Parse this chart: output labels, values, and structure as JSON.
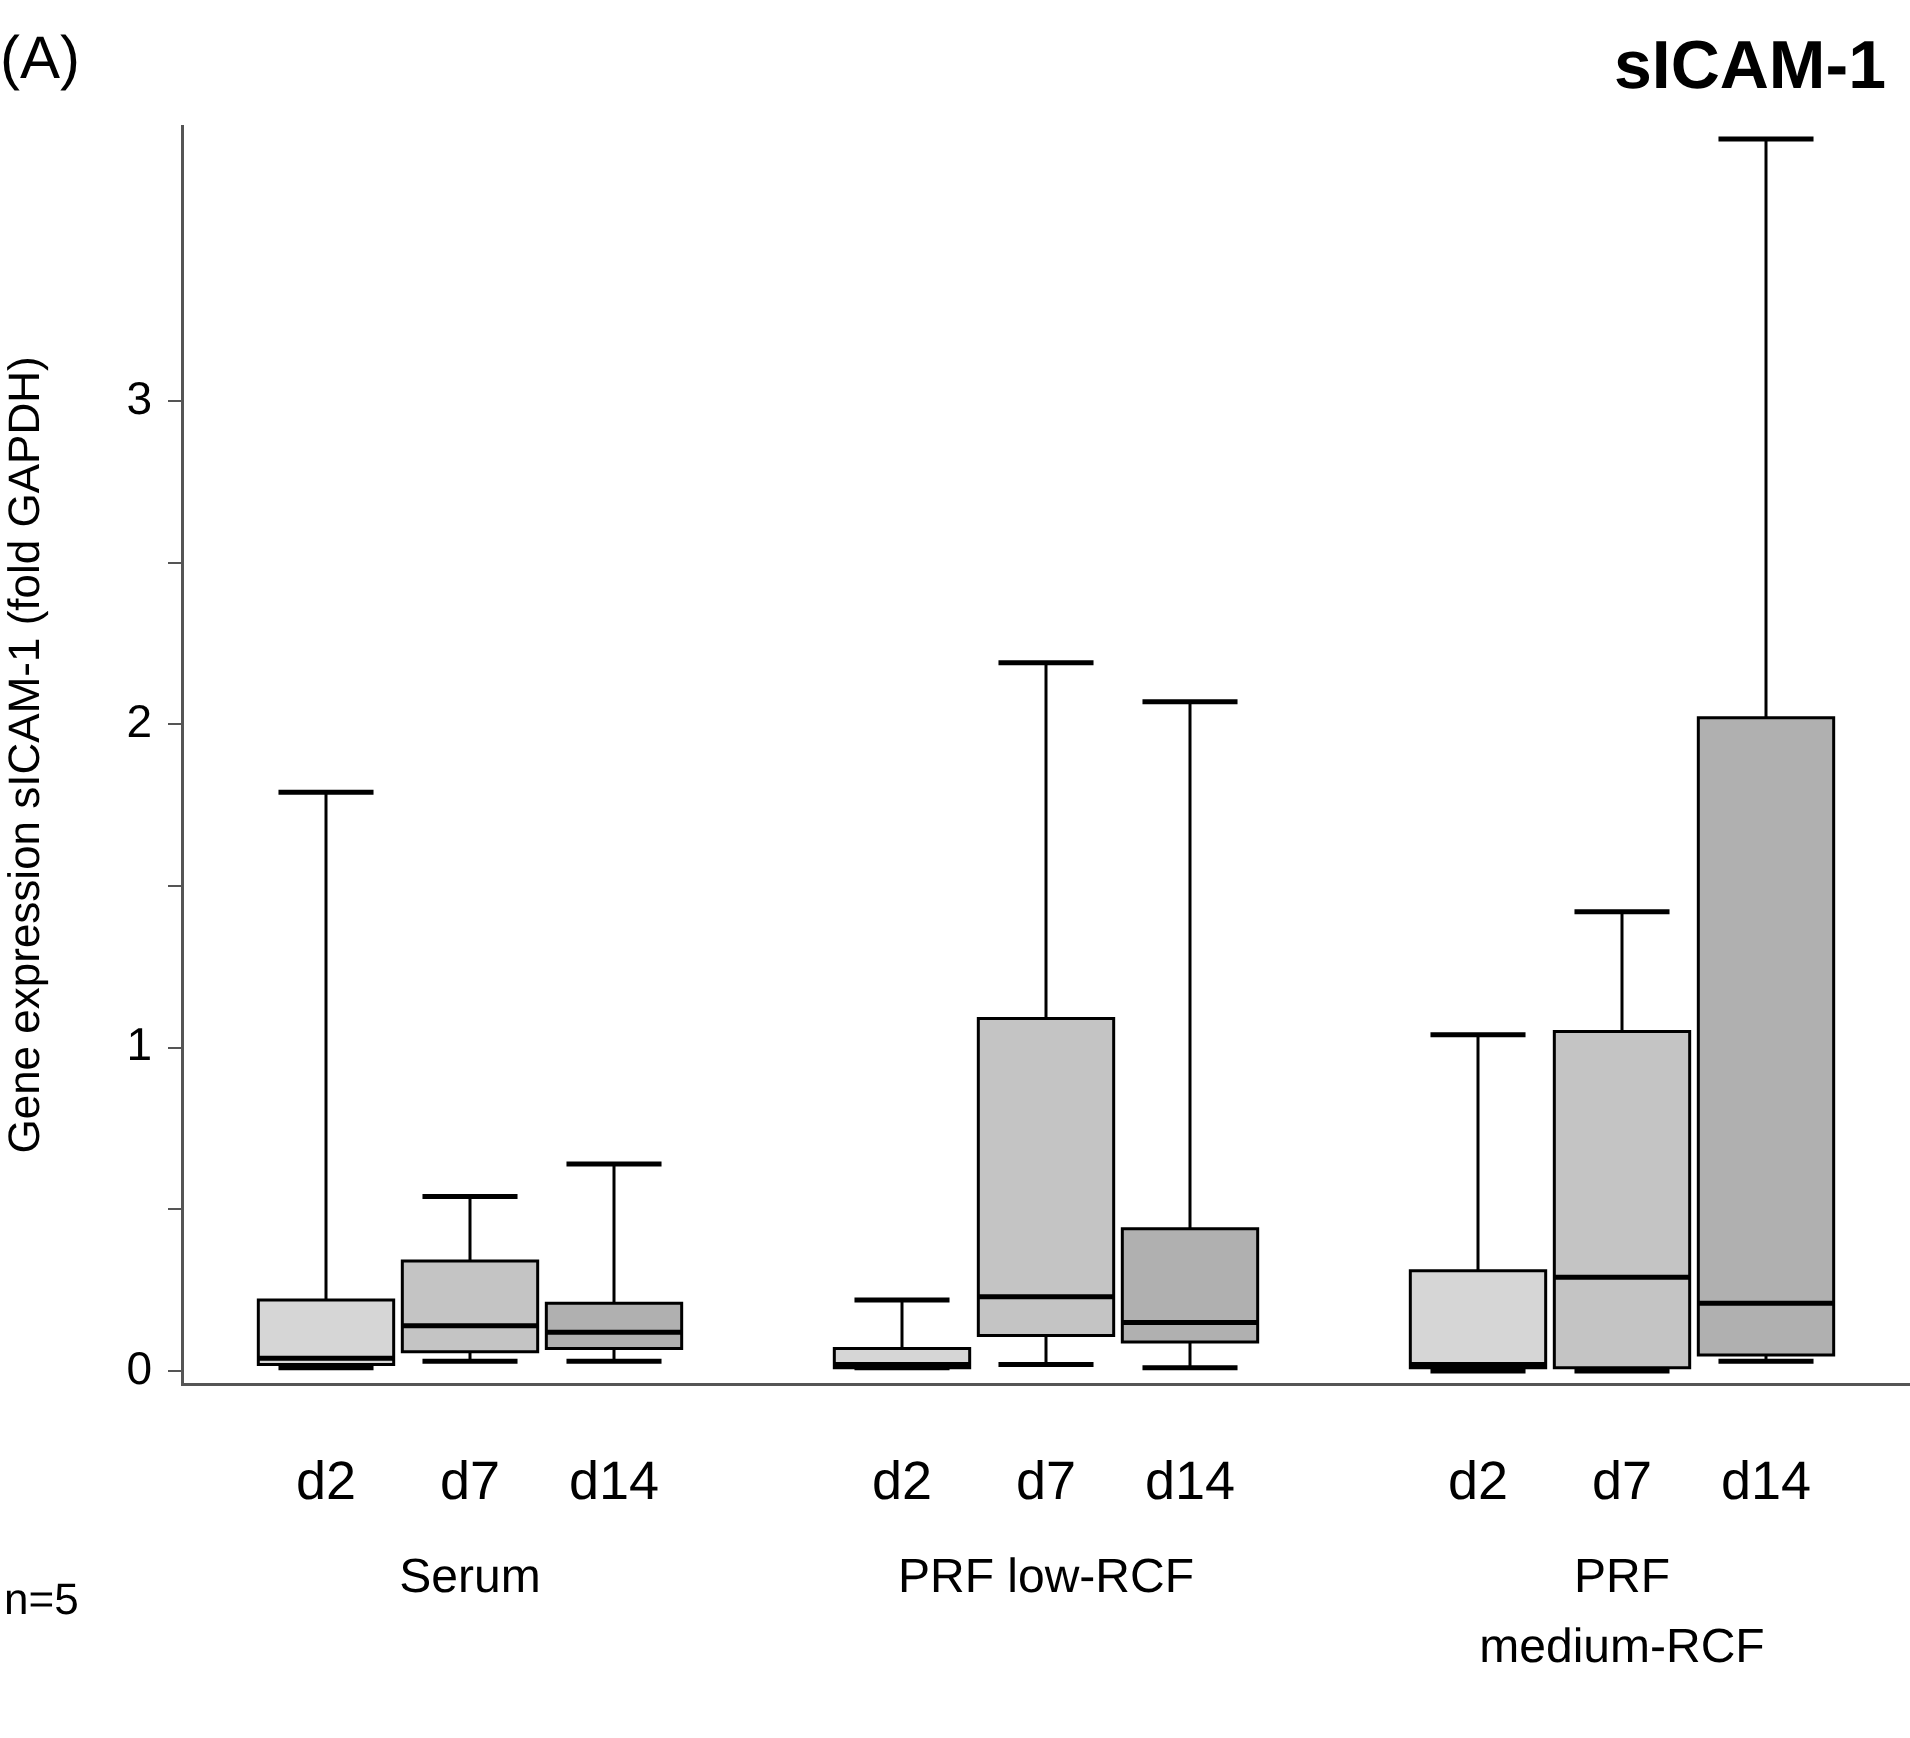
{
  "chart_data": {
    "type": "box",
    "title": "sICAM-1",
    "ylabel": "Gene expression sICAM-1 (fold GAPDH)",
    "categories": [
      "d2",
      "d7",
      "d14",
      null,
      "d2",
      "d7",
      "d14",
      null,
      "d2",
      "d7",
      "d14"
    ],
    "colors": [
      "#d6d6d6",
      "#c4c4c4",
      "#b0b0b0",
      null,
      "#d6d6d6",
      "#c4c4c4",
      "#b0b0b0",
      null,
      "#d6d6d6",
      "#c4c4c4",
      "#b0b0b0"
    ],
    "boxes": [
      {
        "low": 0.01,
        "q1": 0.02,
        "median": 0.04,
        "q3": 0.22,
        "high": 1.79
      },
      {
        "low": 0.03,
        "q1": 0.06,
        "median": 0.14,
        "q3": 0.34,
        "high": 0.54
      },
      {
        "low": 0.03,
        "q1": 0.07,
        "median": 0.12,
        "q3": 0.21,
        "high": 0.64
      },
      null,
      {
        "low": 0.01,
        "q1": 0.01,
        "median": 0.02,
        "q3": 0.07,
        "high": 0.22
      },
      {
        "low": 0.02,
        "q1": 0.11,
        "median": 0.23,
        "q3": 1.09,
        "high": 2.19
      },
      {
        "low": 0.01,
        "q1": 0.09,
        "median": 0.15,
        "q3": 0.44,
        "high": 2.07
      },
      null,
      {
        "low": 0,
        "q1": 0.01,
        "median": 0.02,
        "q3": 0.31,
        "high": 1.04
      },
      {
        "low": 0,
        "q1": 0.01,
        "median": 0.29,
        "q3": 1.05,
        "high": 1.42
      },
      {
        "low": 0.03,
        "q1": 0.05,
        "median": 0.21,
        "q3": 2.02,
        "high": 3.81
      }
    ],
    "ylim": [
      -0.04,
      3.85
    ],
    "yticks": [
      0,
      {
        "value": 0.5,
        "label": null
      },
      1,
      {
        "value": 1.5,
        "label": null
      },
      2,
      {
        "value": 2.5,
        "label": null
      },
      3
    ],
    "annotations": [
      "(A)",
      "n=5",
      "Serum",
      "PRF low-RCF",
      "PRF medium-RCF"
    ]
  }
}
